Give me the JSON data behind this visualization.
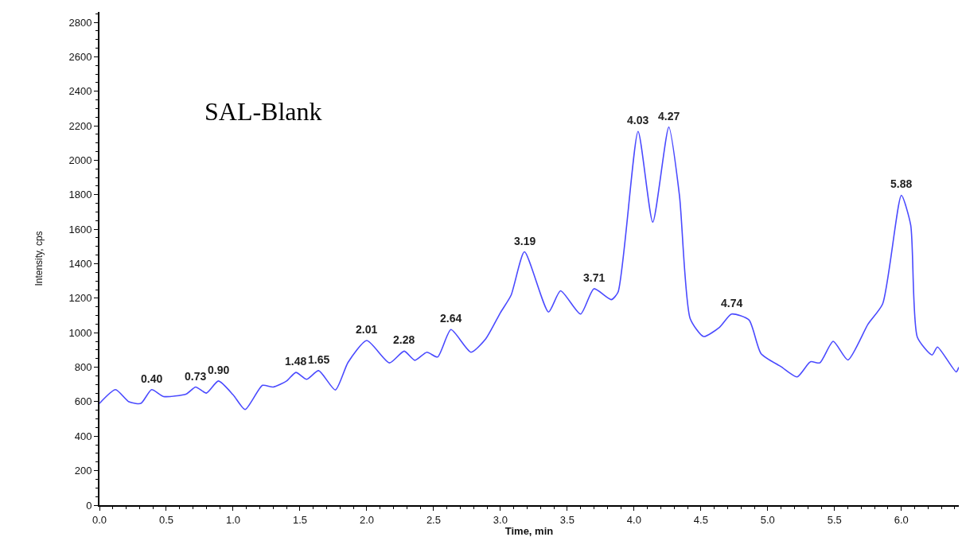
{
  "chart_data": {
    "type": "line",
    "xlabel": "Time, min",
    "ylabel": "Intensity, cps",
    "x": [
      0,
      0.12,
      0.22,
      0.31,
      0.39,
      0.48,
      0.65,
      0.72,
      0.8,
      0.89,
      1.0,
      1.09,
      1.22,
      1.3,
      1.4,
      1.47,
      1.55,
      1.64,
      1.765,
      1.86,
      2.0,
      2.17,
      2.28,
      2.36,
      2.45,
      2.53,
      2.63,
      2.78,
      2.89,
      3.0,
      3.08,
      3.18,
      3.36,
      3.45,
      3.6,
      3.7,
      3.83,
      3.88,
      4.03,
      4.14,
      4.26,
      4.34,
      4.42,
      4.52,
      4.64,
      4.73,
      4.86,
      4.95,
      5.1,
      5.22,
      5.32,
      5.39,
      5.49,
      5.6,
      5.75,
      5.86,
      6.0,
      6.07,
      6.12,
      6.23,
      6.27,
      6.41,
      6.43
    ],
    "series": [
      {
        "color": "#4a4aff",
        "values": [
          590,
          670,
          600,
          590,
          670,
          630,
          645,
          685,
          650,
          720,
          640,
          555,
          695,
          685,
          720,
          770,
          730,
          780,
          668,
          828,
          955,
          825,
          893,
          840,
          887,
          859,
          1018,
          887,
          964,
          1116,
          1218,
          1469,
          1120,
          1243,
          1108,
          1255,
          1192,
          1235,
          2167,
          1641,
          2192,
          1794,
          1082,
          978,
          1032,
          1108,
          1074,
          879,
          803,
          744,
          832,
          825,
          950,
          842,
          1049,
          1167,
          1797,
          1624,
          973,
          871,
          917,
          773,
          800
        ]
      }
    ],
    "xlim": [
      0,
      6.43
    ],
    "ylim": [
      0,
      2860
    ],
    "xticks": [
      {
        "value": 0,
        "label": "0.0"
      },
      {
        "value": 0.5,
        "label": "0.5"
      },
      {
        "value": 1,
        "label": "1.0"
      },
      {
        "value": 1.5,
        "label": "1.5"
      },
      {
        "value": 2,
        "label": "2.0"
      },
      {
        "value": 2.5,
        "label": "2.5"
      },
      {
        "value": 3,
        "label": "3.0"
      },
      {
        "value": 3.5,
        "label": "3.5"
      },
      {
        "value": 4,
        "label": "4.0"
      },
      {
        "value": 4.5,
        "label": "4.5"
      },
      {
        "value": 5,
        "label": "5.0"
      },
      {
        "value": 5.5,
        "label": "5.5"
      },
      {
        "value": 6,
        "label": "6.0"
      }
    ],
    "yticks": [
      0,
      200,
      400,
      600,
      800,
      1000,
      1200,
      1400,
      1600,
      1800,
      2000,
      2200,
      2400,
      2600,
      2800
    ],
    "marker": "none",
    "line_style": "solid",
    "annotations": [
      {
        "text": "0.40",
        "x": 0.39,
        "y": 670
      },
      {
        "text": "0.73",
        "x": 0.72,
        "y": 685
      },
      {
        "text": "0.90",
        "x": 0.89,
        "y": 720
      },
      {
        "text": "1.48",
        "x": 1.47,
        "y": 770
      },
      {
        "text": "1.65",
        "x": 1.64,
        "y": 780
      },
      {
        "text": "2.01",
        "x": 2.0,
        "y": 955
      },
      {
        "text": "2.28",
        "x": 2.28,
        "y": 893
      },
      {
        "text": "2.64",
        "x": 2.63,
        "y": 1018
      },
      {
        "text": "3.19",
        "x": 3.18,
        "y": 1469
      },
      {
        "text": "3.71",
        "x": 3.7,
        "y": 1255
      },
      {
        "text": "4.03",
        "x": 4.03,
        "y": 2167
      },
      {
        "text": "4.27",
        "x": 4.26,
        "y": 2192
      },
      {
        "text": "4.74",
        "x": 4.73,
        "y": 1108
      },
      {
        "text": "5.88",
        "x": 6.0,
        "y": 1797
      },
      "SAL-Blank"
    ]
  }
}
